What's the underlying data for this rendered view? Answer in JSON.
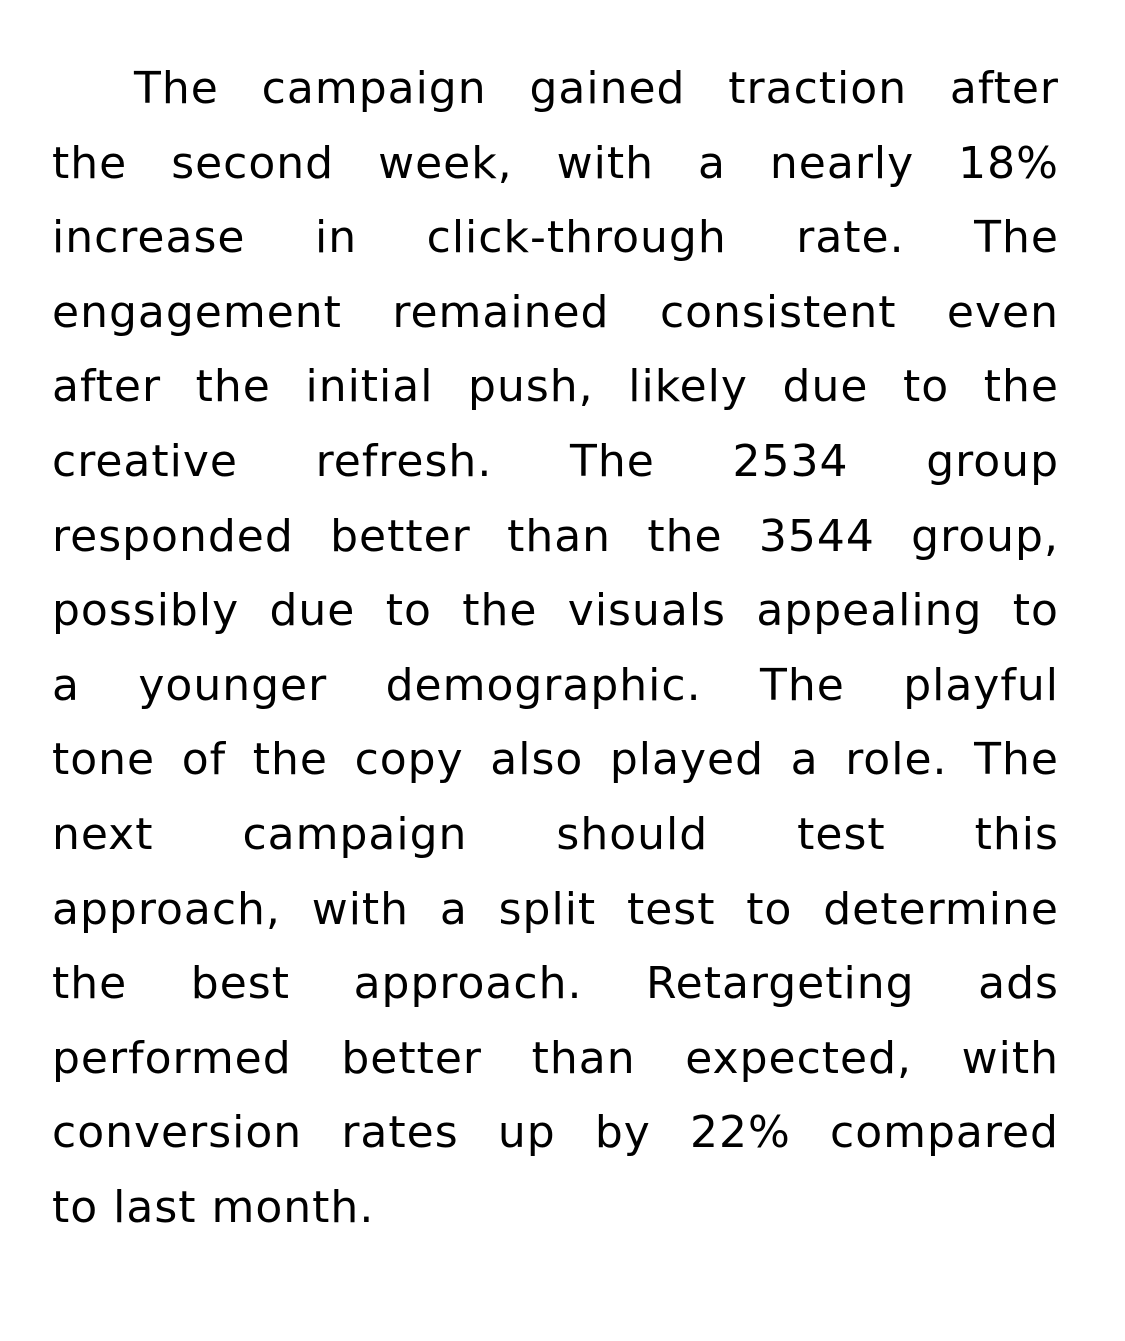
{
  "document": {
    "lines": [
      [
        "The",
        "campaign",
        "gained",
        "traction",
        "after"
      ],
      [
        "the",
        "second",
        "week,",
        "with",
        "a",
        "nearly",
        "18%"
      ],
      [
        "increase",
        "in",
        "click-through",
        "rate.",
        "The"
      ],
      [
        "engagement",
        "remained",
        "consistent",
        "even"
      ],
      [
        "after",
        "the",
        "initial",
        "push,",
        "likely",
        "due",
        "to",
        "the"
      ],
      [
        "creative",
        "refresh.",
        "The",
        "2534",
        "group"
      ],
      [
        "responded",
        "better",
        "than",
        "the",
        "3544",
        "group,"
      ],
      [
        "possibly",
        "due",
        "to",
        "the",
        "visuals",
        "appealing",
        "to"
      ],
      [
        "a",
        "younger",
        "demographic.",
        "The",
        "playful"
      ],
      [
        "tone",
        "of",
        "the",
        "copy",
        "also",
        "played",
        "a",
        "role.",
        "The"
      ],
      [
        "next",
        "campaign",
        "should",
        "test",
        "this"
      ],
      [
        "approach,",
        "with",
        "a",
        "split",
        "test",
        "to",
        "determine"
      ],
      [
        "the",
        "best",
        "approach.",
        "Retargeting",
        "ads"
      ],
      [
        "performed",
        "better",
        "than",
        "expected,",
        "with"
      ],
      [
        "conversion",
        "rates",
        "up",
        "by",
        "22%",
        "compared"
      ]
    ],
    "last_line": "to last month."
  }
}
